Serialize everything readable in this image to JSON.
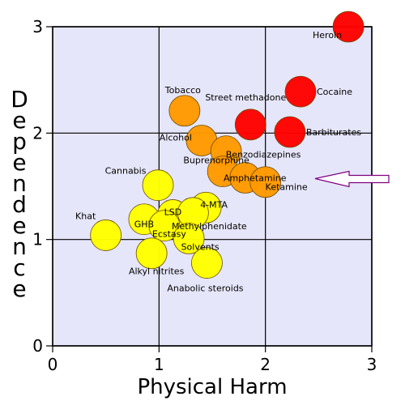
{
  "chart_data": {
    "type": "scatter",
    "title": "",
    "xlabel": "Physical Harm",
    "ylabel": "Dependence",
    "xlim": [
      0,
      3
    ],
    "ylim": [
      0,
      3
    ],
    "x_ticks": [
      "0",
      "1",
      "2",
      "3"
    ],
    "y_ticks": [
      "0",
      "1",
      "2",
      "3"
    ],
    "grid": true,
    "plot_background": "#e6e6fa",
    "colors": {
      "red": "#ff0000",
      "orange": "#ff9900",
      "yellow": "#ffff00"
    },
    "points": [
      {
        "label": "Heroin",
        "x": 2.78,
        "y": 3.0,
        "color": "red"
      },
      {
        "label": "Cocaine",
        "x": 2.33,
        "y": 2.39,
        "color": "red"
      },
      {
        "label": "Street methadone",
        "x": 1.86,
        "y": 2.08,
        "color": "red"
      },
      {
        "label": "Barbiturates",
        "x": 2.23,
        "y": 2.01,
        "color": "red"
      },
      {
        "label": "Tobacco",
        "x": 1.24,
        "y": 2.21,
        "color": "orange"
      },
      {
        "label": "Alcohol",
        "x": 1.4,
        "y": 1.93,
        "color": "orange"
      },
      {
        "label": "Benzodiazepines",
        "x": 1.63,
        "y": 1.83,
        "color": "orange"
      },
      {
        "label": "Buprenorphine",
        "x": 1.6,
        "y": 1.64,
        "color": "orange"
      },
      {
        "label": "Amphetamine",
        "x": 1.81,
        "y": 1.58,
        "color": "orange"
      },
      {
        "label": "Ketamine",
        "x": 2.0,
        "y": 1.54,
        "color": "orange"
      },
      {
        "label": "Cannabis",
        "x": 0.99,
        "y": 1.51,
        "color": "yellow"
      },
      {
        "label": "LSD",
        "x": 1.13,
        "y": 1.23,
        "color": "yellow"
      },
      {
        "label": "4-MTA",
        "x": 1.44,
        "y": 1.3,
        "color": "yellow"
      },
      {
        "label": "Methylphenidate",
        "x": 1.32,
        "y": 1.25,
        "color": "yellow"
      },
      {
        "label": "GHB",
        "x": 0.86,
        "y": 1.19,
        "color": "yellow"
      },
      {
        "label": "Ecstasy",
        "x": 1.05,
        "y": 1.13,
        "color": "yellow"
      },
      {
        "label": "Khat",
        "x": 0.5,
        "y": 1.04,
        "color": "yellow"
      },
      {
        "label": "Solvents",
        "x": 1.28,
        "y": 1.01,
        "color": "yellow"
      },
      {
        "label": "Alkyl nitrites",
        "x": 0.93,
        "y": 0.87,
        "color": "yellow"
      },
      {
        "label": "Anabolic steroids",
        "x": 1.45,
        "y": 0.78,
        "color": "yellow"
      }
    ],
    "annotation": {
      "type": "arrow",
      "points_to": "Amphetamine",
      "color": "#800080"
    }
  }
}
